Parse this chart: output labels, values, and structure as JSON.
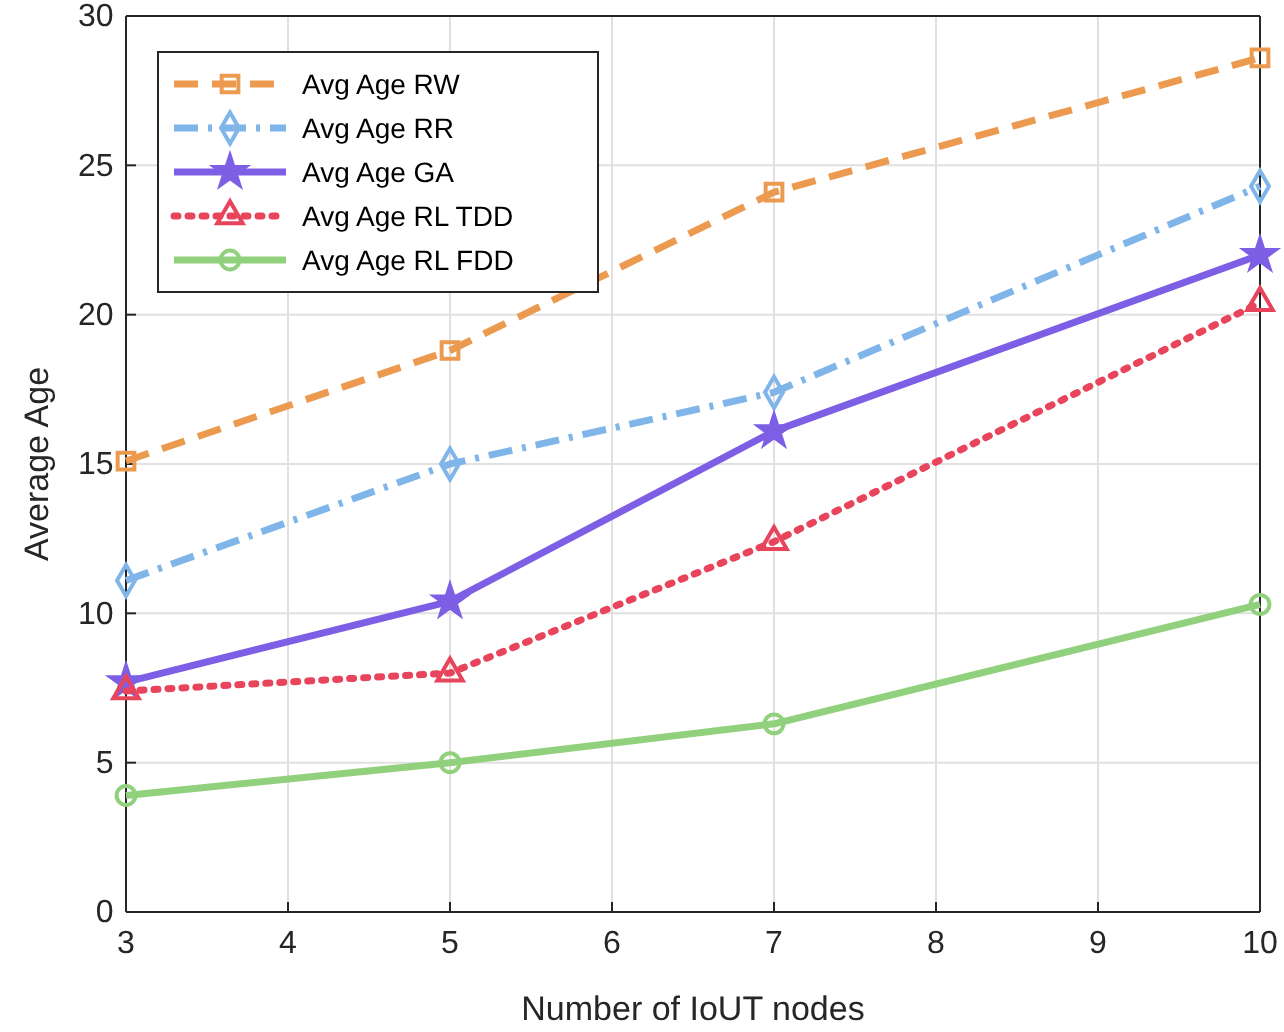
{
  "chart_data": {
    "type": "line",
    "xlabel": "Number of IoUT nodes",
    "ylabel": "Average Age",
    "x": [
      3,
      5,
      7,
      10
    ],
    "xlim": [
      3,
      10
    ],
    "xticks": [
      3,
      4,
      5,
      6,
      7,
      8,
      9,
      10
    ],
    "ylim": [
      0,
      30
    ],
    "yticks": [
      0,
      5,
      10,
      15,
      20,
      25,
      30
    ],
    "grid": true,
    "legend": "top left",
    "series": [
      {
        "name": "Avg Age RW",
        "color": "#eb9a4f",
        "values": [
          15.1,
          18.8,
          24.1,
          28.6
        ],
        "marker": "square",
        "line_style": "dashed"
      },
      {
        "name": "Avg Age RR",
        "color": "#7fb5e8",
        "values": [
          11.1,
          15.0,
          17.4,
          24.3
        ],
        "marker": "diamond",
        "line_style": "dashdot"
      },
      {
        "name": "Avg Age GA",
        "color": "#7d5fe6",
        "values": [
          7.7,
          10.4,
          16.1,
          22.0
        ],
        "marker": "star",
        "line_style": "solid"
      },
      {
        "name": "Avg Age RL TDD",
        "color": "#e8445c",
        "values": [
          7.4,
          8.0,
          12.4,
          20.4
        ],
        "marker": "triangle",
        "line_style": "dotted"
      },
      {
        "name": "Avg Age RL FDD",
        "color": "#91d07c",
        "values": [
          3.9,
          5.0,
          6.3,
          10.3
        ],
        "marker": "circle",
        "line_style": "solid"
      }
    ]
  }
}
